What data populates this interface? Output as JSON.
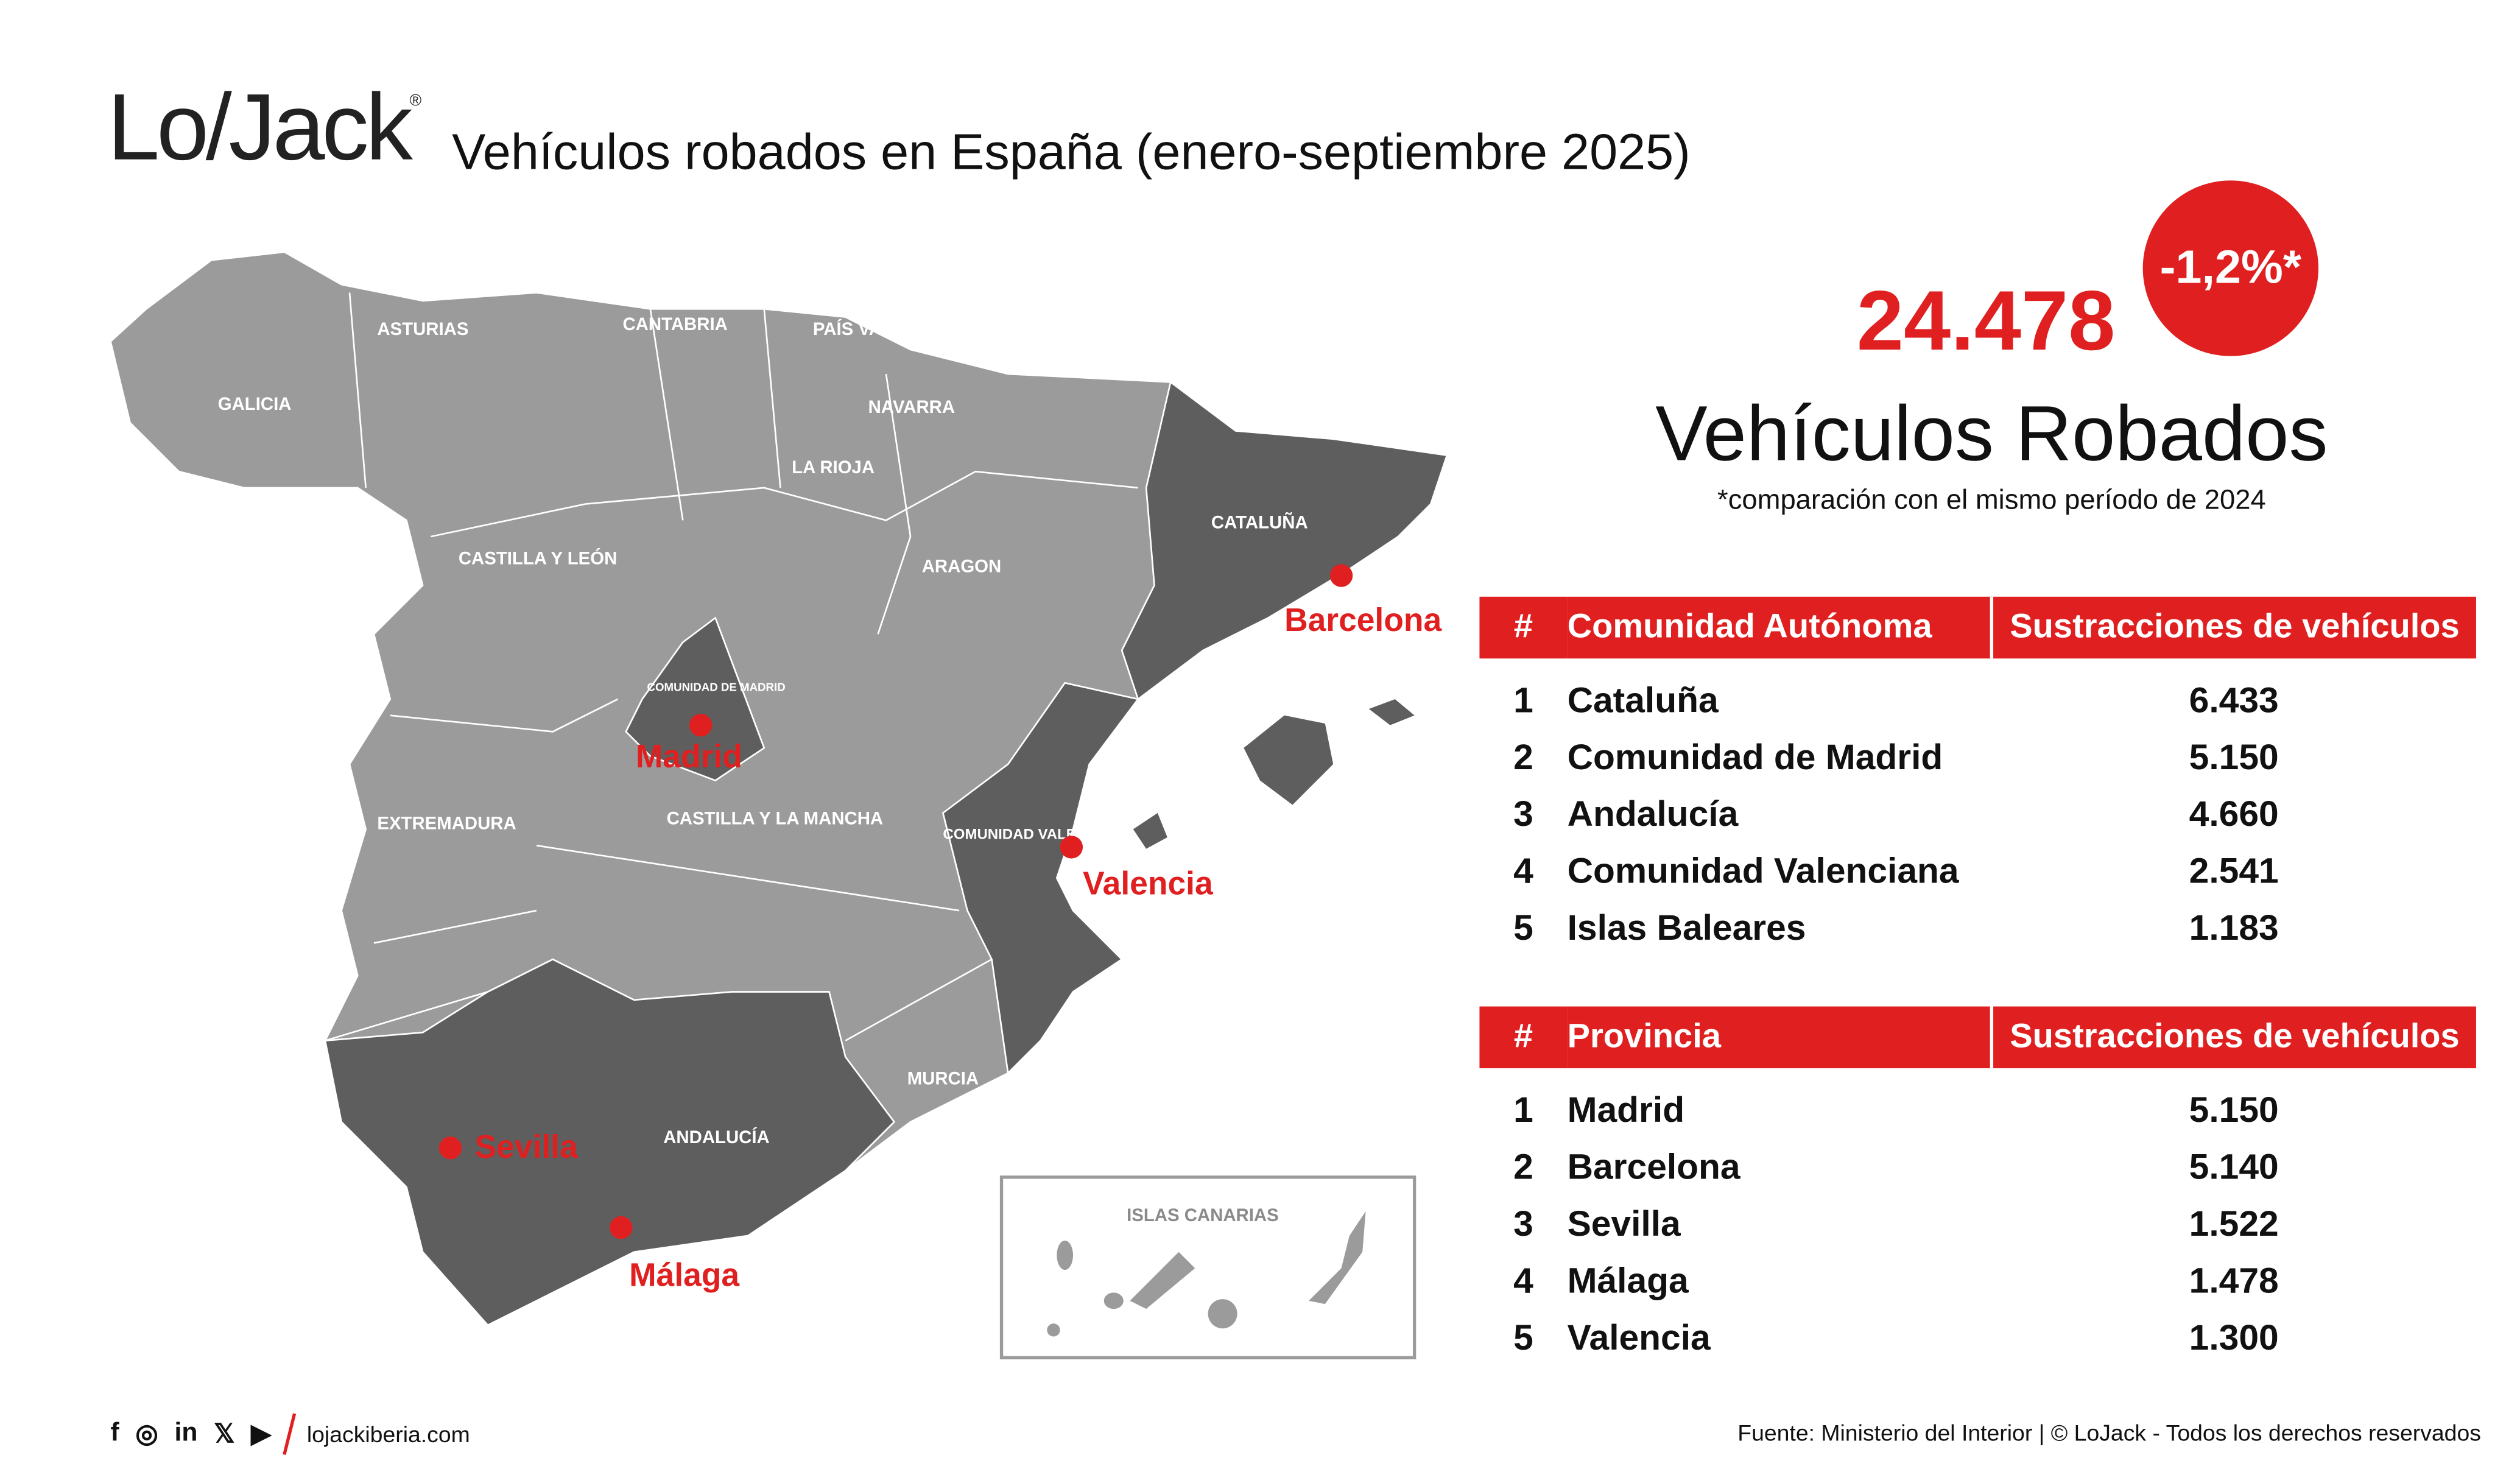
{
  "logo": {
    "text": "Lo/Jack",
    "registered": "®"
  },
  "title": "Vehículos robados en España (enero-septiembre 2025)",
  "summary": {
    "total": "24.478",
    "change": "-1,2%*",
    "label": "Vehículos Robados",
    "note": "*comparación con el mismo período de 2024"
  },
  "map": {
    "regions": [
      "ASTURIAS",
      "CANTABRIA",
      "PAÍS VASCO",
      "GALICIA",
      "NAVARRA",
      "LA RIOJA",
      "CATALUÑA",
      "CASTILLA Y LEÓN",
      "ARAGON",
      "COMUNIDAD DE MADRID",
      "EXTREMADURA",
      "CASTILLA Y LA MANCHA",
      "COMUNIDAD VALENCIANA",
      "MURCIA",
      "ANDALUCÍA",
      "ISLAS CANARIAS"
    ],
    "cities": [
      "Barcelona",
      "Madrid",
      "Valencia",
      "Sevilla",
      "Málaga"
    ],
    "colors": {
      "light": "#9b9b9b",
      "dark": "#5e5e5e",
      "accent": "#e02020"
    }
  },
  "table_ccaa": {
    "headers": [
      "#",
      "Comunidad Autónoma",
      "Sustracciones de vehículos"
    ],
    "rows": [
      [
        "1",
        "Cataluña",
        "6.433"
      ],
      [
        "2",
        "Comunidad de Madrid",
        "5.150"
      ],
      [
        "3",
        "Andalucía",
        "4.660"
      ],
      [
        "4",
        "Comunidad Valenciana",
        "2.541"
      ],
      [
        "5",
        "Islas Baleares",
        "1.183"
      ]
    ]
  },
  "table_prov": {
    "headers": [
      "#",
      "Provincia",
      "Sustracciones de vehículos"
    ],
    "rows": [
      [
        "1",
        "Madrid",
        "5.150"
      ],
      [
        "2",
        "Barcelona",
        "5.140"
      ],
      [
        "3",
        "Sevilla",
        "1.522"
      ],
      [
        "4",
        "Málaga",
        "1.478"
      ],
      [
        "5",
        "Valencia",
        "1.300"
      ]
    ]
  },
  "footer": {
    "social": [
      "f",
      "◎",
      "in",
      "𝕏",
      "▶"
    ],
    "website": "lojackiberia.com",
    "source": "Fuente: Ministerio del Interior | © LoJack - Todos los derechos reservados"
  }
}
